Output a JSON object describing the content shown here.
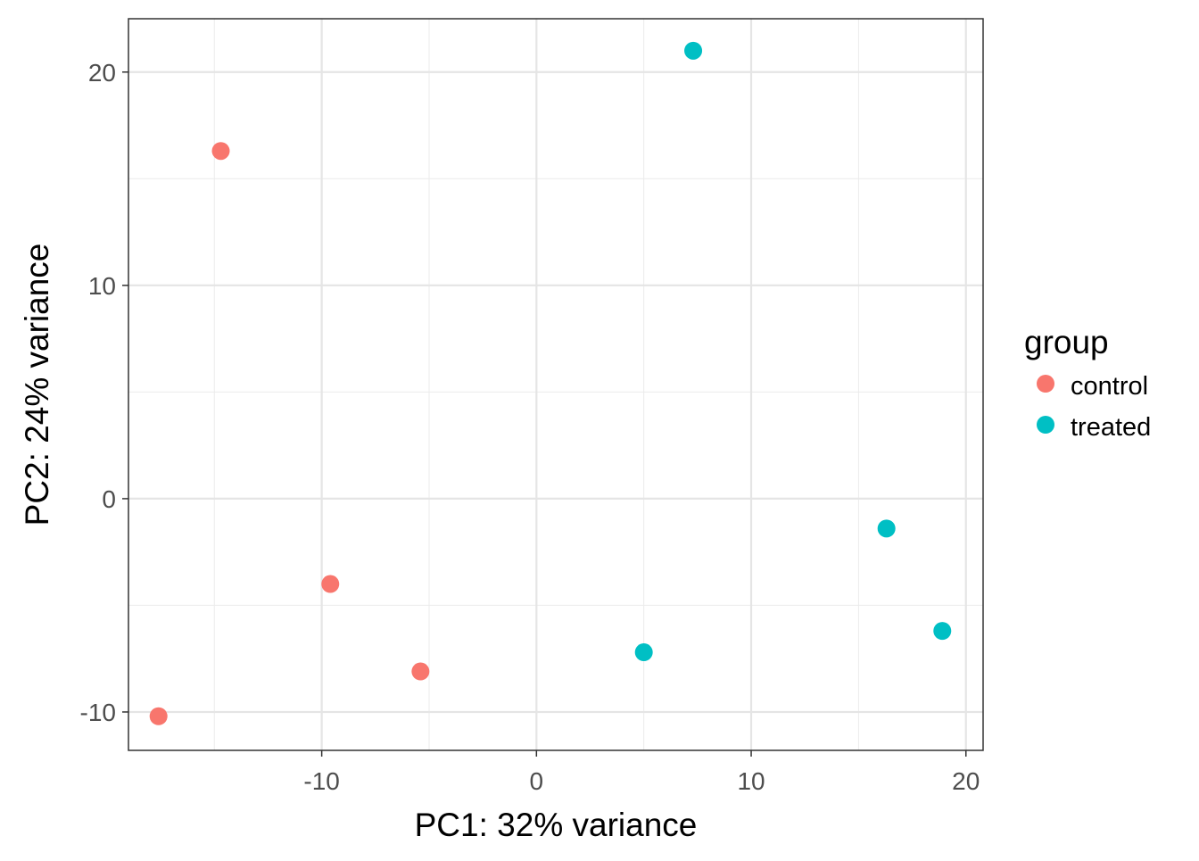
{
  "chart_data": {
    "type": "scatter",
    "xlabel": "PC1: 32% variance",
    "ylabel": "PC2: 24% variance",
    "xlim": [
      -19,
      20.8
    ],
    "ylim": [
      -11.8,
      22.5
    ],
    "x_ticks": [
      -10,
      0,
      10,
      20
    ],
    "x_tick_labels": [
      "-10",
      "0",
      "10",
      "20"
    ],
    "y_ticks": [
      -10,
      0,
      10,
      20
    ],
    "y_tick_labels": [
      "-10",
      "0",
      "10",
      "20"
    ],
    "x_minor_ticks": [
      -15,
      -5,
      5,
      15
    ],
    "y_minor_ticks": [
      -5,
      5,
      15
    ],
    "grid": true,
    "legend": {
      "title": "group",
      "placement": "right",
      "entries": [
        {
          "label": "control",
          "color": "#F8766D"
        },
        {
          "label": "treated",
          "color": "#00BFC4"
        }
      ]
    },
    "series": [
      {
        "name": "control",
        "color": "#F8766D",
        "points": [
          {
            "x": -14.7,
            "y": 16.3
          },
          {
            "x": -9.6,
            "y": -4.0
          },
          {
            "x": -5.4,
            "y": -8.1
          },
          {
            "x": -17.6,
            "y": -10.2
          }
        ]
      },
      {
        "name": "treated",
        "color": "#00BFC4",
        "points": [
          {
            "x": 7.3,
            "y": 21.0
          },
          {
            "x": 16.3,
            "y": -1.4
          },
          {
            "x": 5.0,
            "y": -7.2
          },
          {
            "x": 18.9,
            "y": -6.2
          }
        ]
      }
    ]
  }
}
